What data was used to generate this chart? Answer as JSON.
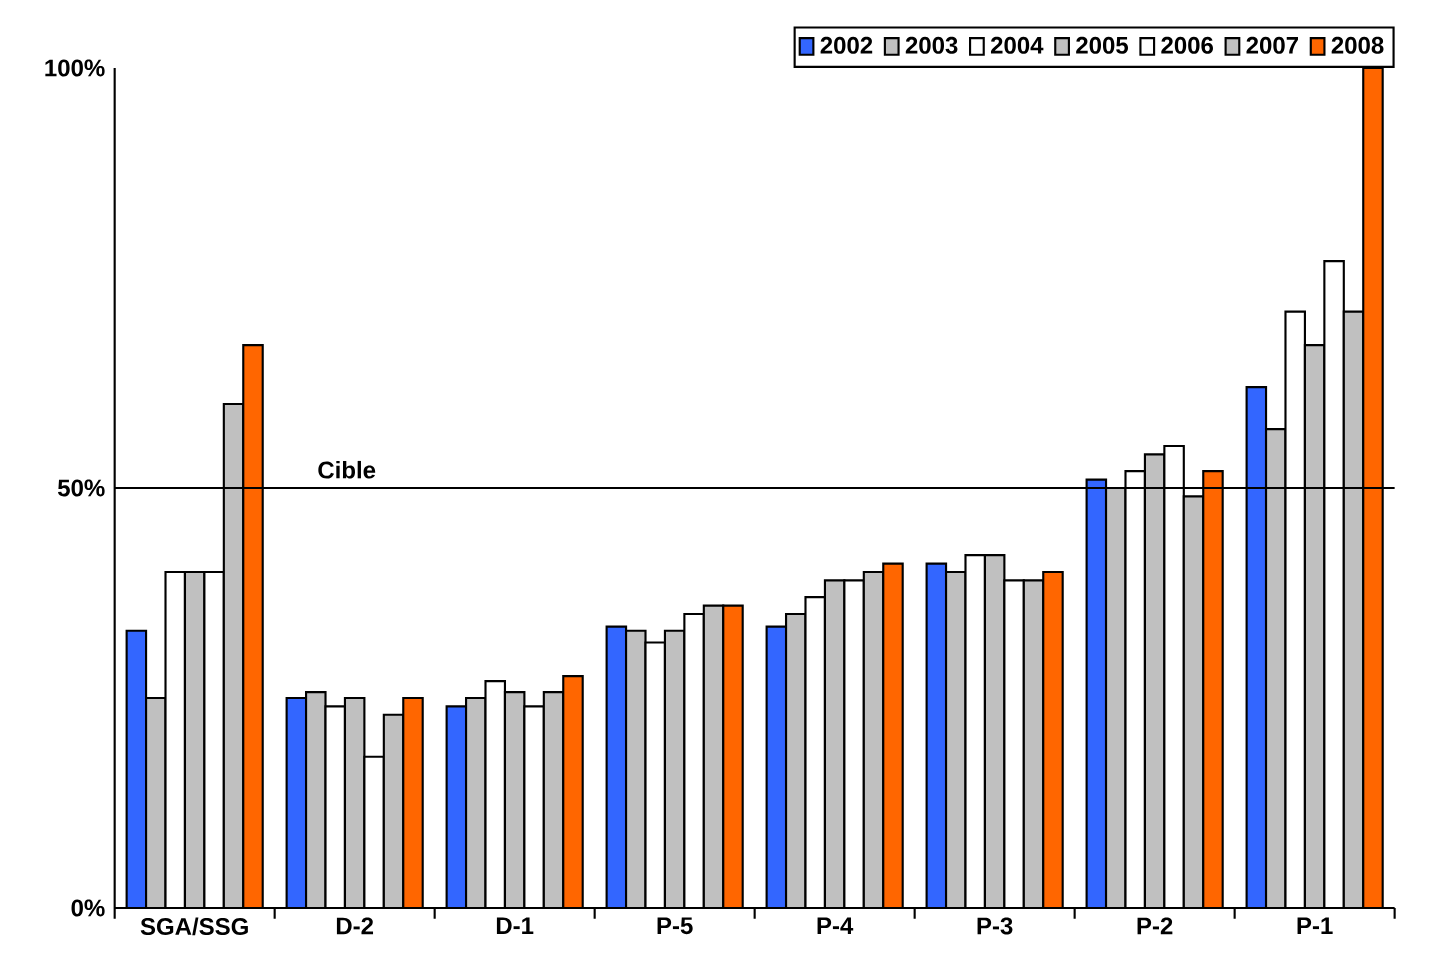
{
  "chart_data": {
    "type": "bar",
    "categories": [
      "SGA/SSG",
      "D-2",
      "D-1",
      "P-5",
      "P-4",
      "P-3",
      "P-2",
      "P-1"
    ],
    "series": [
      {
        "name": "2002",
        "color": "#3366ff",
        "values": [
          33,
          25,
          24,
          33.5,
          33.5,
          41,
          51,
          62
        ]
      },
      {
        "name": "2003",
        "color": "#c0c0c0",
        "values": [
          25,
          25.7,
          25,
          33,
          35,
          40,
          50,
          57
        ]
      },
      {
        "name": "2004",
        "color": "#ffffff",
        "values": [
          40,
          24,
          27,
          31.6,
          37,
          42,
          52,
          71
        ]
      },
      {
        "name": "2005",
        "color": "#c0c0c0",
        "values": [
          40,
          25,
          25.7,
          33,
          39,
          42,
          54,
          67
        ]
      },
      {
        "name": "2006",
        "color": "#ffffff",
        "values": [
          40,
          18,
          24,
          35,
          39,
          39,
          55,
          77
        ]
      },
      {
        "name": "2007",
        "color": "#c0c0c0",
        "values": [
          60,
          23,
          25.7,
          36,
          40,
          39,
          49,
          71
        ]
      },
      {
        "name": "2008",
        "color": "#ff6600",
        "values": [
          67,
          25,
          27.6,
          36,
          41,
          40,
          52,
          100
        ]
      }
    ],
    "ylim": [
      0,
      100
    ],
    "yticks": [
      {
        "value": 0,
        "label": "0%"
      },
      {
        "value": 50,
        "label": "50%"
      },
      {
        "value": 100,
        "label": "100%"
      }
    ],
    "legend": "top right",
    "ref_lines": [
      {
        "axis": "y",
        "value": 50,
        "label": "Cible"
      }
    ]
  }
}
